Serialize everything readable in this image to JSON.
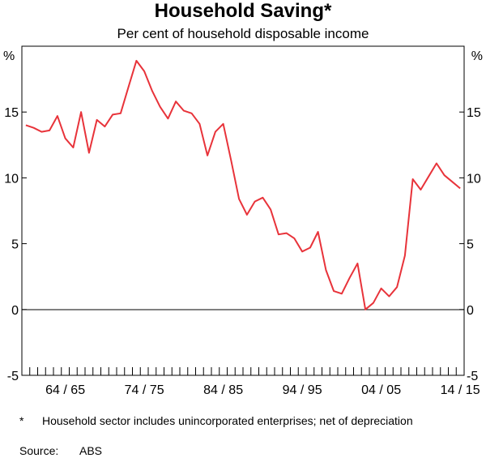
{
  "header": {
    "title": "Household Saving*",
    "subtitle": "Per cent of household disposable income"
  },
  "footnotes": {
    "star_mark": "*",
    "note_text": "Household sector includes unincorporated enterprises; net of depreciation",
    "source_label": "Source:",
    "source_value": "ABS"
  },
  "colors": {
    "series": "#e8333a",
    "axis": "#000000",
    "zero_line": "#000000"
  },
  "chart_data": {
    "type": "line",
    "title": "Household Saving*",
    "subtitle": "Per cent of household disposable income",
    "ylabel_left": "%",
    "ylabel_right": "%",
    "ylim": [
      -5,
      20
    ],
    "yticks": [
      -5,
      0,
      5,
      10,
      15
    ],
    "ytick_labels": [
      "-5",
      "0",
      "5",
      "10",
      "15"
    ],
    "grid": false,
    "zero_line": true,
    "x_range": [
      "1959/60",
      "2014/15"
    ],
    "xtick_labels": [
      {
        "label": "64 / 65",
        "year": "1964/65"
      },
      {
        "label": "74 / 75",
        "year": "1974/75"
      },
      {
        "label": "84 / 85",
        "year": "1984/85"
      },
      {
        "label": "94 / 95",
        "year": "1994/95"
      },
      {
        "label": "04 / 05",
        "year": "2004/05"
      },
      {
        "label": "14 / 15",
        "year": "2014/15"
      }
    ],
    "series": [
      {
        "x": [
          "1959/60",
          "1960/61",
          "1961/62",
          "1962/63",
          "1963/64",
          "1964/65",
          "1965/66",
          "1966/67",
          "1967/68",
          "1968/69",
          "1969/70",
          "1970/71",
          "1971/72",
          "1972/73",
          "1973/74",
          "1974/75",
          "1975/76",
          "1976/77",
          "1977/78",
          "1978/79",
          "1979/80",
          "1980/81",
          "1981/82",
          "1982/83",
          "1983/84",
          "1984/85",
          "1985/86",
          "1986/87",
          "1987/88",
          "1988/89",
          "1989/90",
          "1990/91",
          "1991/92",
          "1992/93",
          "1993/94",
          "1994/95",
          "1995/96",
          "1996/97",
          "1997/98",
          "1998/99",
          "1999/00",
          "2000/01",
          "2001/02",
          "2002/03",
          "2003/04",
          "2004/05",
          "2005/06",
          "2006/07",
          "2007/08",
          "2008/09",
          "2009/10",
          "2010/11",
          "2011/12",
          "2012/13",
          "2013/14",
          "2014/15"
        ],
        "values": [
          14.0,
          13.8,
          13.5,
          13.6,
          14.7,
          13.0,
          12.3,
          15.0,
          11.9,
          14.4,
          13.9,
          14.8,
          14.9,
          16.9,
          18.9,
          18.1,
          16.6,
          15.4,
          14.5,
          15.8,
          15.1,
          14.9,
          14.1,
          11.7,
          13.5,
          14.1,
          11.3,
          8.4,
          7.2,
          8.2,
          8.5,
          7.6,
          5.7,
          5.8,
          5.4,
          4.4,
          4.7,
          5.9,
          3.0,
          1.4,
          1.2,
          2.4,
          3.5,
          0.0,
          0.5,
          1.6,
          1.0,
          1.7,
          4.1,
          9.9,
          9.1,
          10.1,
          11.1,
          10.2,
          9.7,
          9.2
        ]
      }
    ]
  }
}
